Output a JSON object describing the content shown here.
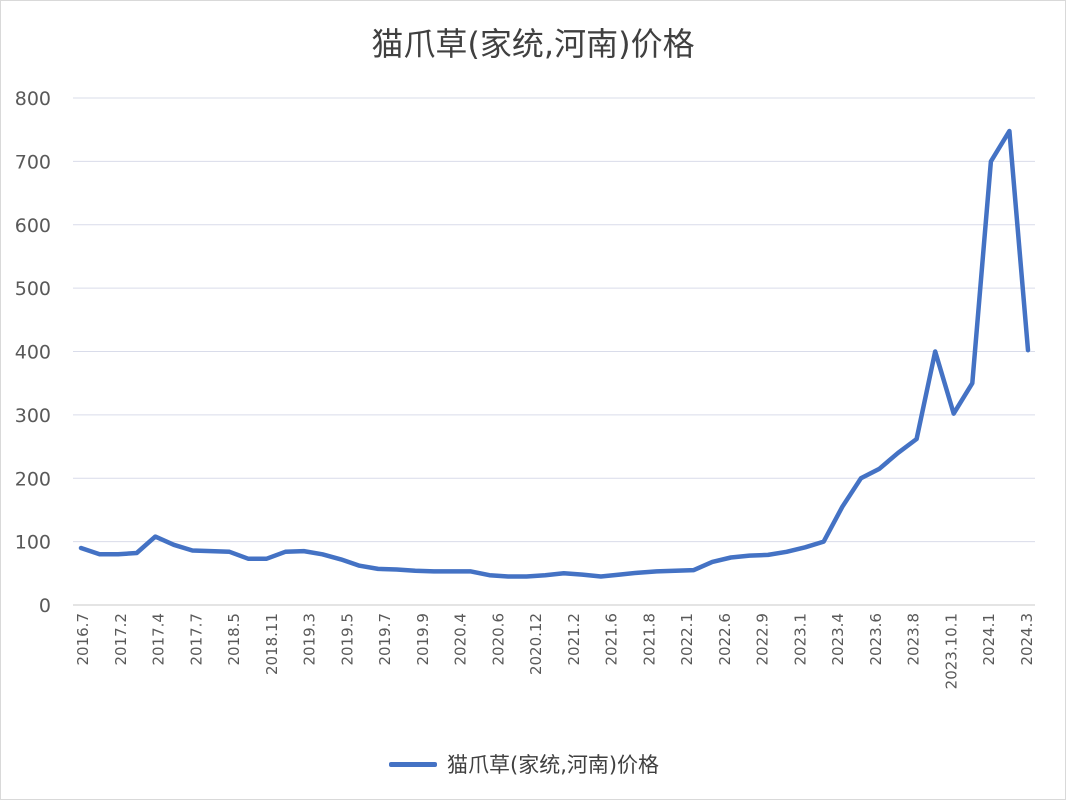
{
  "chart_data": {
    "type": "line",
    "title": "猫爪草(家统,河南)价格",
    "xlabel": "",
    "ylabel": "",
    "ylim": [
      0,
      800
    ],
    "yticks": [
      0,
      100,
      200,
      300,
      400,
      500,
      600,
      700,
      800
    ],
    "grid": true,
    "legend_position": "bottom",
    "color": "#4472c4",
    "x_tick_labels": [
      "2016.7",
      "2017.2",
      "2017.4",
      "2017.7",
      "2018.5",
      "2018.11",
      "2019.3",
      "2019.5",
      "2019.7",
      "2019.9",
      "2020.4",
      "2020.6",
      "2020.12",
      "2021.2",
      "2021.6",
      "2021.8",
      "2022.1",
      "2022.6",
      "2022.9",
      "2023.1",
      "2023.4",
      "2023.6",
      "2023.8",
      "2023.10.1",
      "2024.1",
      "2024.3"
    ],
    "series": [
      {
        "name": "猫爪草(家统,河南)价格",
        "values": [
          90,
          80,
          80,
          82,
          108,
          95,
          86,
          85,
          84,
          73,
          73,
          84,
          85,
          80,
          72,
          62,
          57,
          56,
          54,
          53,
          53,
          53,
          47,
          45,
          45,
          47,
          50,
          48,
          45,
          48,
          51,
          53,
          54,
          55,
          68,
          75,
          78,
          79,
          84,
          91,
          100,
          155,
          200,
          215,
          240,
          262,
          400,
          302,
          350,
          700,
          748,
          402
        ]
      }
    ]
  }
}
